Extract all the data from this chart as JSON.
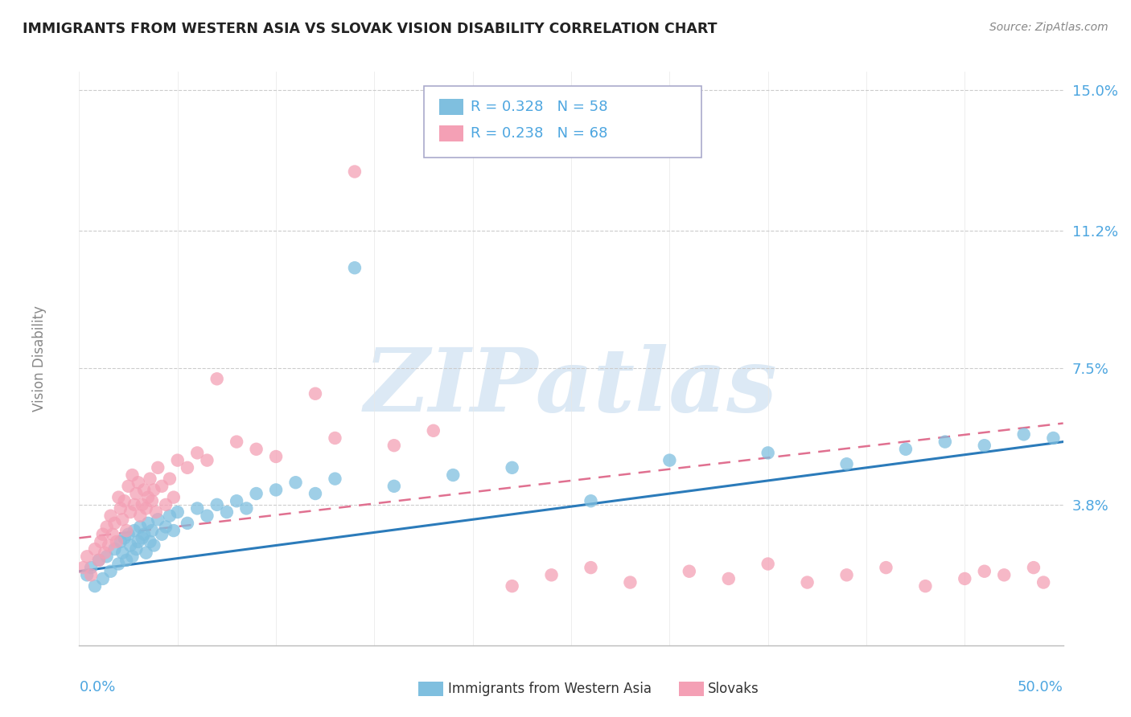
{
  "title": "IMMIGRANTS FROM WESTERN ASIA VS SLOVAK VISION DISABILITY CORRELATION CHART",
  "source": "Source: ZipAtlas.com",
  "ylabel": "Vision Disability",
  "x_min": 0.0,
  "x_max": 50.0,
  "y_min": 0.0,
  "y_max": 15.5,
  "yticks": [
    3.8,
    7.5,
    11.2,
    15.0
  ],
  "ytick_labels": [
    "3.8%",
    "7.5%",
    "11.2%",
    "15.0%"
  ],
  "legend_r1": "R = 0.328   N = 58",
  "legend_r2": "R = 0.238   N = 68",
  "blue_color": "#7fbfdf",
  "pink_color": "#f4a0b5",
  "blue_line_color": "#2b7bba",
  "pink_line_color": "#e07090",
  "axis_label_color": "#4da6e0",
  "legend_text_color": "#4da6e0",
  "watermark_color": "#dce9f5",
  "blue_points_x": [
    0.4,
    0.6,
    0.8,
    1.0,
    1.2,
    1.4,
    1.6,
    1.8,
    2.0,
    2.1,
    2.2,
    2.3,
    2.4,
    2.5,
    2.6,
    2.7,
    2.8,
    2.9,
    3.0,
    3.1,
    3.2,
    3.3,
    3.4,
    3.5,
    3.6,
    3.7,
    3.8,
    4.0,
    4.2,
    4.4,
    4.6,
    4.8,
    5.0,
    5.5,
    6.0,
    6.5,
    7.0,
    7.5,
    8.0,
    8.5,
    9.0,
    10.0,
    11.0,
    12.0,
    13.0,
    14.0,
    16.0,
    19.0,
    22.0,
    26.0,
    30.0,
    35.0,
    39.0,
    42.0,
    44.0,
    46.0,
    48.0,
    49.5
  ],
  "blue_points_y": [
    1.9,
    2.1,
    1.6,
    2.3,
    1.8,
    2.4,
    2.0,
    2.6,
    2.2,
    2.8,
    2.5,
    2.9,
    2.3,
    3.0,
    2.7,
    2.4,
    3.1,
    2.6,
    2.8,
    3.2,
    2.9,
    3.0,
    2.5,
    3.3,
    2.8,
    3.1,
    2.7,
    3.4,
    3.0,
    3.2,
    3.5,
    3.1,
    3.6,
    3.3,
    3.7,
    3.5,
    3.8,
    3.6,
    3.9,
    3.7,
    4.1,
    4.2,
    4.4,
    4.1,
    4.5,
    10.2,
    4.3,
    4.6,
    4.8,
    3.9,
    5.0,
    5.2,
    4.9,
    5.3,
    5.5,
    5.4,
    5.7,
    5.6
  ],
  "pink_points_x": [
    0.2,
    0.4,
    0.6,
    0.8,
    1.0,
    1.1,
    1.2,
    1.3,
    1.4,
    1.5,
    1.6,
    1.7,
    1.8,
    1.9,
    2.0,
    2.1,
    2.2,
    2.3,
    2.4,
    2.5,
    2.6,
    2.7,
    2.8,
    2.9,
    3.0,
    3.1,
    3.2,
    3.3,
    3.4,
    3.5,
    3.6,
    3.7,
    3.8,
    3.9,
    4.0,
    4.2,
    4.4,
    4.6,
    4.8,
    5.0,
    5.5,
    6.0,
    6.5,
    7.0,
    8.0,
    9.0,
    10.0,
    12.0,
    13.0,
    14.0,
    16.0,
    18.0,
    22.0,
    24.0,
    26.0,
    28.0,
    31.0,
    33.0,
    35.0,
    37.0,
    39.0,
    41.0,
    43.0,
    45.0,
    46.0,
    47.0,
    48.5,
    49.0
  ],
  "pink_points_y": [
    2.1,
    2.4,
    1.9,
    2.6,
    2.3,
    2.8,
    3.0,
    2.5,
    3.2,
    2.7,
    3.5,
    3.0,
    3.3,
    2.8,
    4.0,
    3.7,
    3.4,
    3.9,
    3.1,
    4.3,
    3.6,
    4.6,
    3.8,
    4.1,
    4.4,
    3.5,
    3.8,
    4.2,
    3.7,
    4.0,
    4.5,
    3.9,
    4.2,
    3.6,
    4.8,
    4.3,
    3.8,
    4.5,
    4.0,
    5.0,
    4.8,
    5.2,
    5.0,
    7.2,
    5.5,
    5.3,
    5.1,
    6.8,
    5.6,
    12.8,
    5.4,
    5.8,
    1.6,
    1.9,
    2.1,
    1.7,
    2.0,
    1.8,
    2.2,
    1.7,
    1.9,
    2.1,
    1.6,
    1.8,
    2.0,
    1.9,
    2.1,
    1.7
  ],
  "blue_trend_x0": 0,
  "blue_trend_x1": 50,
  "blue_trend_y0": 2.0,
  "blue_trend_y1": 5.5,
  "pink_trend_x0": 0,
  "pink_trend_x1": 50,
  "pink_trend_y0": 2.9,
  "pink_trend_y1": 6.0
}
